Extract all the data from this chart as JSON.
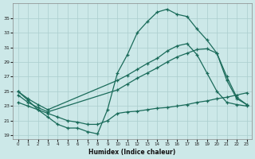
{
  "xlabel": "Humidex (Indice chaleur)",
  "bg_color": "#cce8e8",
  "grid_color": "#aacece",
  "line_color": "#1a6b5a",
  "line1_x": [
    0,
    1,
    2,
    3,
    4,
    5,
    6,
    7,
    8,
    9,
    10,
    11,
    12,
    13,
    14,
    15,
    16,
    17,
    18,
    19,
    20,
    21,
    22,
    23
  ],
  "line1_y": [
    25.0,
    23.8,
    22.5,
    21.5,
    20.5,
    20.0,
    20.0,
    19.5,
    19.2,
    22.5,
    27.5,
    30.0,
    33.0,
    34.5,
    35.8,
    36.2,
    35.5,
    35.2,
    33.5,
    32.0,
    30.2,
    26.5,
    24.0,
    23.2
  ],
  "line2_x": [
    0,
    1,
    2,
    3,
    10,
    11,
    12,
    13,
    14,
    15,
    16,
    17,
    18,
    19,
    20,
    21,
    22,
    23
  ],
  "line2_y": [
    25.0,
    24.0,
    23.2,
    22.5,
    26.5,
    27.2,
    28.0,
    28.8,
    29.5,
    30.5,
    31.2,
    31.5,
    30.0,
    27.5,
    25.0,
    23.5,
    23.2,
    23.0
  ],
  "line3_x": [
    0,
    1,
    2,
    3,
    10,
    11,
    12,
    13,
    14,
    15,
    16,
    17,
    18,
    19,
    20,
    21,
    22,
    23
  ],
  "line3_y": [
    24.5,
    23.5,
    22.8,
    22.2,
    25.2,
    26.0,
    26.8,
    27.5,
    28.2,
    29.0,
    29.7,
    30.2,
    30.7,
    30.8,
    30.2,
    27.0,
    24.2,
    23.2
  ],
  "line4_x": [
    0,
    1,
    2,
    3,
    4,
    5,
    6,
    7,
    8,
    9,
    10,
    11,
    12,
    13,
    14,
    15,
    16,
    17,
    18,
    19,
    20,
    21,
    22,
    23
  ],
  "line4_y": [
    23.5,
    23.0,
    22.5,
    22.0,
    21.5,
    21.0,
    20.8,
    20.5,
    20.5,
    21.0,
    22.0,
    22.2,
    22.3,
    22.5,
    22.7,
    22.8,
    23.0,
    23.2,
    23.5,
    23.7,
    24.0,
    24.2,
    24.5,
    24.8
  ],
  "xlim": [
    -0.5,
    23.5
  ],
  "ylim": [
    18.5,
    37.0
  ],
  "yticks": [
    19,
    21,
    23,
    25,
    27,
    29,
    31,
    33,
    35
  ],
  "xticks": [
    0,
    1,
    2,
    3,
    4,
    5,
    6,
    7,
    8,
    9,
    10,
    11,
    12,
    13,
    14,
    15,
    16,
    17,
    18,
    19,
    20,
    21,
    22,
    23
  ]
}
